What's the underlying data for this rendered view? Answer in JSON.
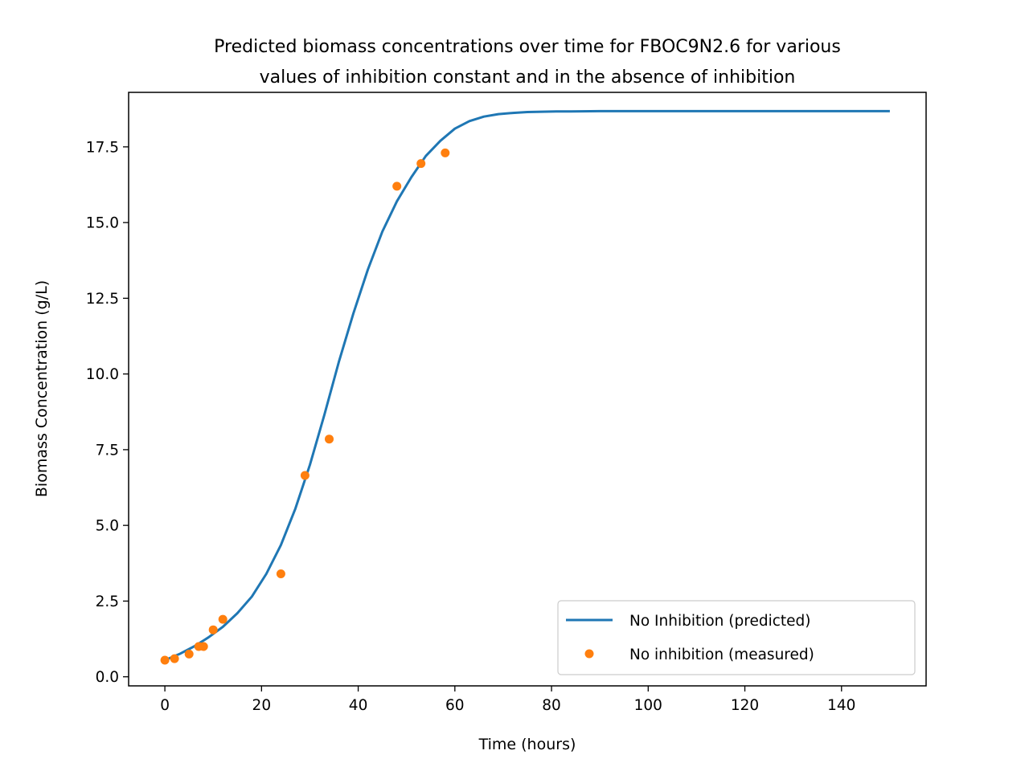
{
  "chart_data": {
    "type": "line",
    "title_lines": [
      "Predicted biomass concentrations over time for FBOC9N2.6 for various",
      "values of inhibition constant and in the absence of inhibition"
    ],
    "xlabel": "Time (hours)",
    "ylabel": "Biomass Concentration (g/L)",
    "xlim": [
      -7.5,
      157.5
    ],
    "ylim": [
      -0.3,
      19.3
    ],
    "x_ticks": [
      0,
      20,
      40,
      60,
      80,
      100,
      120,
      140
    ],
    "x_tick_labels": [
      "0",
      "20",
      "40",
      "60",
      "80",
      "100",
      "120",
      "140"
    ],
    "y_ticks": [
      0,
      2.5,
      5,
      7.5,
      10,
      12.5,
      15,
      17.5
    ],
    "y_tick_labels": [
      "0.0",
      "2.5",
      "5.0",
      "7.5",
      "10.0",
      "12.5",
      "15.0",
      "17.5"
    ],
    "grid": false,
    "legend_position": "lower-right",
    "series": [
      {
        "name": "No Inhibition (predicted)",
        "kind": "line",
        "color": "#1f77b4",
        "x": [
          0,
          3,
          6,
          9,
          12,
          15,
          18,
          21,
          24,
          27,
          30,
          33,
          36,
          39,
          42,
          45,
          48,
          51,
          54,
          57,
          60,
          63,
          66,
          69,
          72,
          75,
          78,
          81,
          84,
          90,
          100,
          110,
          120,
          130,
          140,
          150
        ],
        "y": [
          0.55,
          0.75,
          1.0,
          1.3,
          1.65,
          2.1,
          2.65,
          3.4,
          4.35,
          5.55,
          7.0,
          8.65,
          10.4,
          12.0,
          13.45,
          14.7,
          15.7,
          16.5,
          17.2,
          17.7,
          18.1,
          18.35,
          18.5,
          18.58,
          18.62,
          18.65,
          18.66,
          18.67,
          18.67,
          18.68,
          18.68,
          18.68,
          18.68,
          18.68,
          18.68,
          18.68
        ]
      },
      {
        "name": "No inhibition (measured)",
        "kind": "scatter",
        "color": "#ff7f0e",
        "x": [
          0,
          2,
          5,
          7,
          8,
          10,
          12,
          24,
          29,
          34,
          48,
          53,
          58
        ],
        "y": [
          0.55,
          0.6,
          0.75,
          1.0,
          1.0,
          1.55,
          1.9,
          3.4,
          6.65,
          7.85,
          16.2,
          16.95,
          17.3
        ]
      }
    ]
  }
}
